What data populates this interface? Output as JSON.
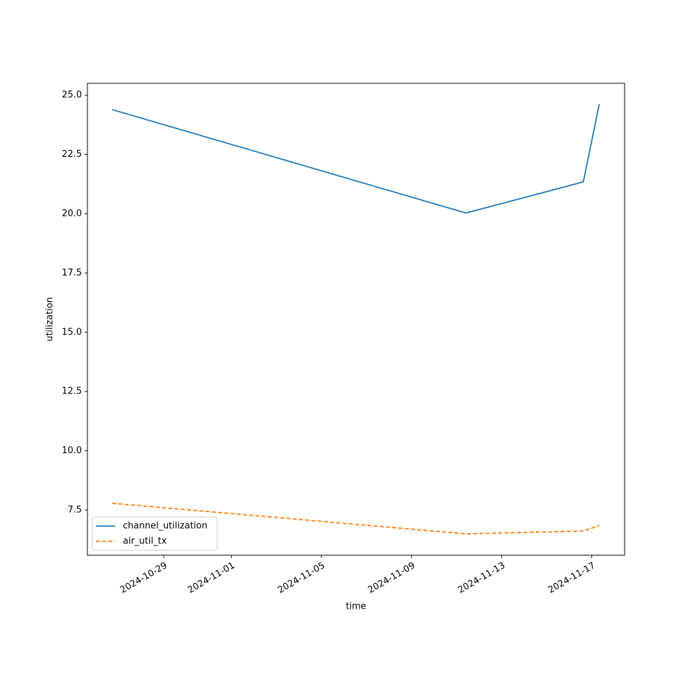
{
  "chart_data": {
    "type": "line",
    "xlabel": "time",
    "ylabel": "utilization",
    "x": [
      "2024-10-26T17:00",
      "2024-11-11T10:00",
      "2024-11-16T15:00",
      "2024-11-17T08:00"
    ],
    "series": [
      {
        "name": "channel_utilization",
        "color": "#1f77b4",
        "linestyle": "solid",
        "values": [
          24.39,
          20.03,
          21.34,
          24.62
        ]
      },
      {
        "name": "air_util_tx",
        "color": "#ff7f0e",
        "linestyle": "dashed",
        "values": [
          7.79,
          6.5,
          6.62,
          6.85
        ]
      }
    ],
    "xlim": [
      "2024-10-25T14:40",
      "2024-11-18T11:00"
    ],
    "xticks": [
      "2024-10-29",
      "2024-11-01",
      "2024-11-05",
      "2024-11-09",
      "2024-11-13",
      "2024-11-17"
    ],
    "ylim": [
      5.6,
      25.5
    ],
    "yticks": [
      7.5,
      {
        "value": 10,
        "label": "10.0"
      },
      12.5,
      {
        "value": 15,
        "label": "15.0"
      },
      17.5,
      {
        "value": 20,
        "label": "20.0"
      },
      22.5,
      {
        "value": 25,
        "label": "25.0"
      }
    ],
    "grid": false,
    "legend": "lower left"
  }
}
